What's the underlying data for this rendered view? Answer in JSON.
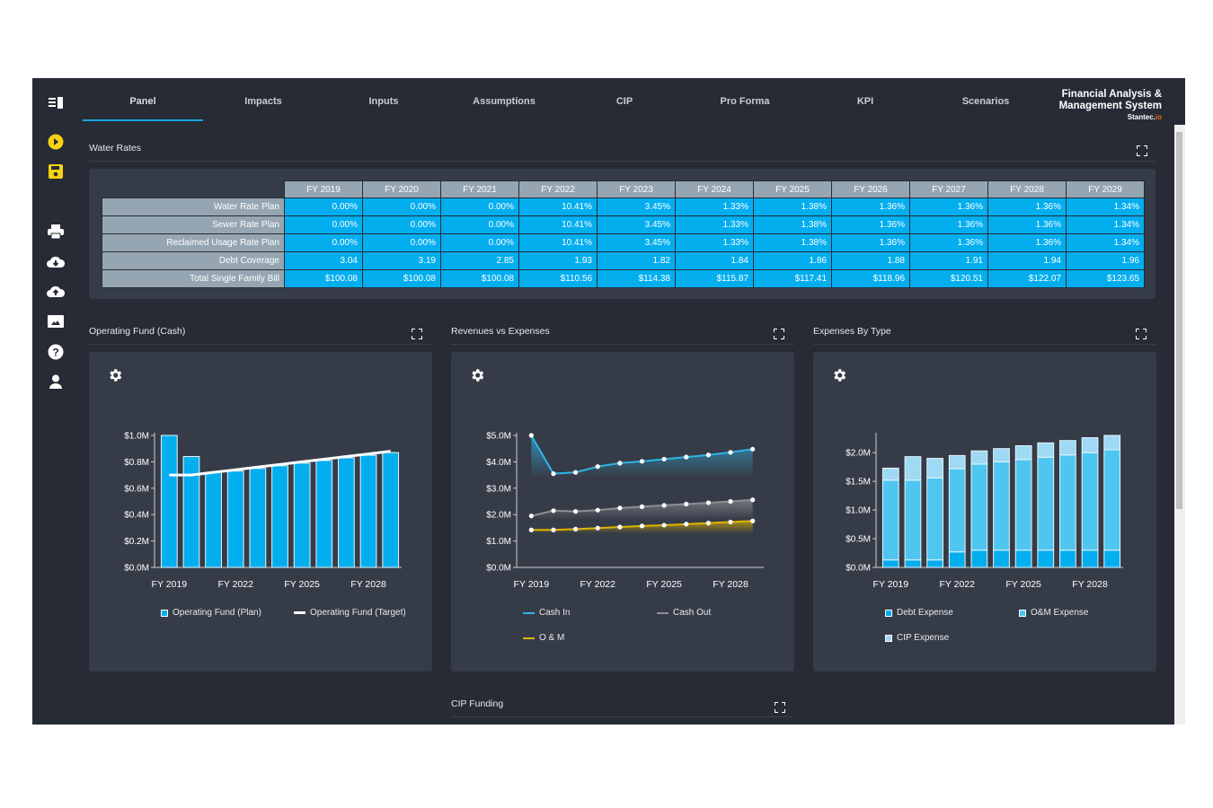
{
  "nav": {
    "tabs": [
      "Panel",
      "Impacts",
      "Inputs",
      "Assumptions",
      "CIP",
      "Pro Forma",
      "KPI",
      "Scenarios"
    ],
    "active": "Panel"
  },
  "brand": {
    "line1": "Financial Analysis &",
    "line2": "Management System",
    "logo": "Stantec.io"
  },
  "sidebar": [
    "menu-icon",
    "run-icon",
    "save-icon",
    "print-icon",
    "download-icon",
    "upload-icon",
    "image-icon",
    "help-icon",
    "user-icon"
  ],
  "colors": {
    "accent": "#1aa3e0",
    "run": "#f5d312",
    "cell": "#03aeef",
    "label": "#95a6b2"
  },
  "water_rates": {
    "title": "Water Rates",
    "columns": [
      "FY 2019",
      "FY 2020",
      "FY 2021",
      "FY 2022",
      "FY 2023",
      "FY 2024",
      "FY 2025",
      "FY 2026",
      "FY 2027",
      "FY 2028",
      "FY 2029"
    ],
    "rows": [
      {
        "label": "Water Rate Plan",
        "values": [
          "0.00%",
          "0.00%",
          "0.00%",
          "10.41%",
          "3.45%",
          "1.33%",
          "1.38%",
          "1.36%",
          "1.36%",
          "1.36%",
          "1.34%"
        ]
      },
      {
        "label": "Sewer Rate Plan",
        "values": [
          "0.00%",
          "0.00%",
          "0.00%",
          "10.41%",
          "3.45%",
          "1.33%",
          "1.38%",
          "1.36%",
          "1.36%",
          "1.36%",
          "1.34%"
        ]
      },
      {
        "label": "Reclaimed Usage Rate Plan",
        "values": [
          "0.00%",
          "0.00%",
          "0.00%",
          "10.41%",
          "3.45%",
          "1.33%",
          "1.38%",
          "1.36%",
          "1.36%",
          "1.36%",
          "1.34%"
        ]
      },
      {
        "label": "Debt Coverage",
        "values": [
          "3.04",
          "3.19",
          "2.85",
          "1.93",
          "1.82",
          "1.84",
          "1.86",
          "1.88",
          "1.91",
          "1.94",
          "1.96"
        ]
      },
      {
        "label": "Total Single Family Bill",
        "values": [
          "$100.08",
          "$100.08",
          "$100.08",
          "$110.56",
          "$114.38",
          "$115.87",
          "$117.41",
          "$118.96",
          "$120.51",
          "$122.07",
          "$123.65"
        ]
      }
    ]
  },
  "cip_funding": {
    "title": "CIP Funding"
  },
  "chart_data": [
    {
      "title": "Operating Fund (Cash)",
      "type": "bar",
      "categories": [
        "FY 2019",
        "FY 2020",
        "FY 2021",
        "FY 2022",
        "FY 2023",
        "FY 2024",
        "FY 2025",
        "FY 2026",
        "FY 2027",
        "FY 2028",
        "FY 2029"
      ],
      "xticks": [
        "FY 2019",
        "FY 2022",
        "FY 2025",
        "FY 2028"
      ],
      "ylim": [
        0,
        1.0
      ],
      "yticks": [
        0,
        0.2,
        0.4,
        0.6,
        0.8,
        1.0
      ],
      "ytick_labels": [
        "$0.0M",
        "$0.2M",
        "$0.4M",
        "$0.6M",
        "$0.8M",
        "$1.0M"
      ],
      "series": [
        {
          "name": "Operating Fund (Plan)",
          "kind": "bar",
          "color": "#03aeef",
          "values": [
            1.0,
            0.84,
            0.72,
            0.73,
            0.75,
            0.77,
            0.79,
            0.81,
            0.83,
            0.85,
            0.87
          ]
        },
        {
          "name": "Operating Fund (Target)",
          "kind": "line",
          "color": "#ffffff",
          "values": [
            0.7,
            0.7,
            0.72,
            0.74,
            0.76,
            0.78,
            0.8,
            0.82,
            0.84,
            0.86,
            0.88
          ]
        }
      ]
    },
    {
      "title": "Revenues vs Expenses",
      "type": "line",
      "categories": [
        "FY 2019",
        "FY 2020",
        "FY 2021",
        "FY 2022",
        "FY 2023",
        "FY 2024",
        "FY 2025",
        "FY 2026",
        "FY 2027",
        "FY 2028",
        "FY 2029"
      ],
      "xticks": [
        "FY 2019",
        "FY 2022",
        "FY 2025",
        "FY 2028"
      ],
      "ylim": [
        0,
        5.0
      ],
      "yticks": [
        0,
        1,
        2,
        3,
        4,
        5
      ],
      "ytick_labels": [
        "$0.0M",
        "$1.0M",
        "$2.0M",
        "$3.0M",
        "$4.0M",
        "$5.0M"
      ],
      "series": [
        {
          "name": "Cash In",
          "kind": "line",
          "color": "#2eb6e8",
          "values": [
            5.0,
            3.55,
            3.6,
            3.82,
            3.95,
            4.02,
            4.1,
            4.18,
            4.26,
            4.36,
            4.48
          ]
        },
        {
          "name": "Cash Out",
          "kind": "line",
          "color": "#8c8f95",
          "values": [
            1.95,
            2.15,
            2.12,
            2.17,
            2.25,
            2.3,
            2.35,
            2.4,
            2.45,
            2.5,
            2.56
          ]
        },
        {
          "name": "O & M",
          "kind": "line",
          "color": "#e0b400",
          "values": [
            1.42,
            1.42,
            1.45,
            1.49,
            1.53,
            1.57,
            1.6,
            1.64,
            1.68,
            1.72,
            1.76
          ]
        }
      ]
    },
    {
      "title": "Expenses By Type",
      "type": "bar",
      "stacked": true,
      "categories": [
        "FY 2019",
        "FY 2020",
        "FY 2021",
        "FY 2022",
        "FY 2023",
        "FY 2024",
        "FY 2025",
        "FY 2026",
        "FY 2027",
        "FY 2028",
        "FY 2029"
      ],
      "xticks": [
        "FY 2019",
        "FY 2022",
        "FY 2025",
        "FY 2028"
      ],
      "ylim": [
        0,
        2.3
      ],
      "yticks": [
        0,
        0.5,
        1.0,
        1.5,
        2.0
      ],
      "ytick_labels": [
        "$0.0M",
        "$0.5M",
        "$1.0M",
        "$1.5M",
        "$2.0M"
      ],
      "series": [
        {
          "name": "Debt Expense",
          "kind": "bar",
          "color": "#03aeef",
          "values": [
            0.13,
            0.13,
            0.13,
            0.27,
            0.3,
            0.3,
            0.3,
            0.3,
            0.3,
            0.3,
            0.3
          ]
        },
        {
          "name": "O&M Expense",
          "kind": "bar",
          "color": "#4fc6f0",
          "values": [
            1.39,
            1.39,
            1.43,
            1.45,
            1.5,
            1.54,
            1.58,
            1.62,
            1.66,
            1.7,
            1.75
          ]
        },
        {
          "name": "CIP Expense",
          "kind": "bar",
          "color": "#9fd9f3",
          "values": [
            0.21,
            0.41,
            0.34,
            0.23,
            0.23,
            0.23,
            0.24,
            0.25,
            0.25,
            0.26,
            0.25
          ]
        }
      ]
    }
  ]
}
